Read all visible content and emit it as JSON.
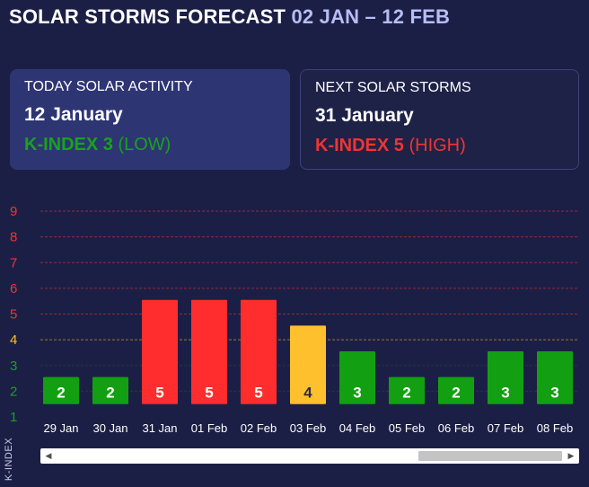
{
  "header": {
    "title": "SOLAR STORMS FORECAST",
    "range": "02 JAN – 12 FEB"
  },
  "today_card": {
    "label": "TODAY SOLAR ACTIVITY",
    "date": "12 January",
    "kindex_label": "K-INDEX 3",
    "level": "(LOW)"
  },
  "next_card": {
    "label": "NEXT SOLAR STORMS",
    "date": "31 January",
    "kindex_label": "K-INDEX 5",
    "level": "(HIGH)"
  },
  "chart_data": {
    "type": "bar",
    "ylabel": "K-INDEX",
    "ylim": [
      1,
      9
    ],
    "yticks": [
      1,
      2,
      3,
      4,
      5,
      6,
      7,
      8,
      9
    ],
    "ytick_colors": {
      "1": "#17a31b",
      "2": "#17a31b",
      "3": "#17a31b",
      "4": "#ffc02e",
      "5": "#f03434",
      "6": "#f03434",
      "7": "#f03434",
      "8": "#f03434",
      "9": "#f03434"
    },
    "categories": [
      "29 Jan",
      "30 Jan",
      "31 Jan",
      "01 Feb",
      "02 Feb",
      "03 Feb",
      "04 Feb",
      "05 Feb",
      "06 Feb",
      "07 Feb",
      "08 Feb"
    ],
    "values": [
      2,
      2,
      5,
      5,
      5,
      4,
      3,
      2,
      2,
      3,
      3
    ],
    "level_colors": {
      "low": "#12a012",
      "moderate": "#ffc02e",
      "high": "#ff2d2d"
    },
    "grid": true
  },
  "scrollbar": {
    "left_arrow": "◀",
    "right_arrow": "▶"
  }
}
